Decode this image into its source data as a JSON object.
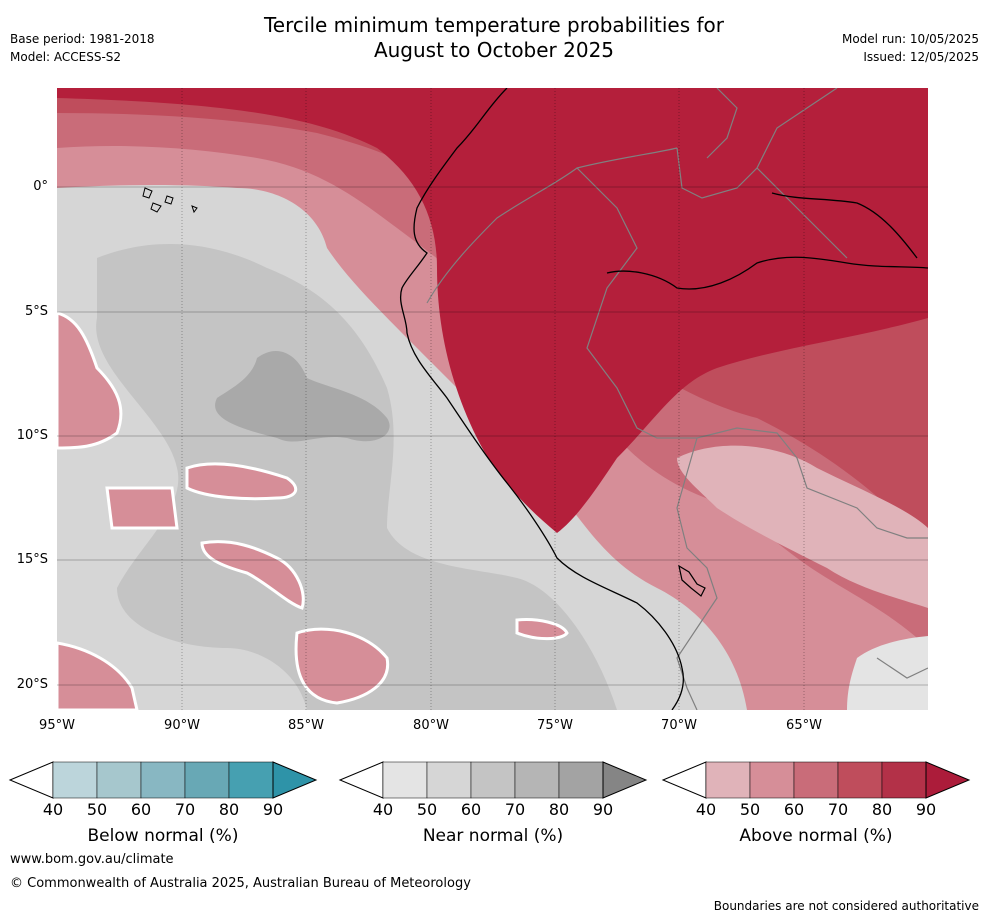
{
  "header": {
    "title_line1": "Tercile minimum temperature probabilities for",
    "title_line2": "August to October 2025",
    "base_period": "Base period: 1981-2018",
    "model": "Model: ACCESS-S2",
    "model_run": "Model run: 10/05/2025",
    "issued": "Issued: 12/05/2025"
  },
  "map": {
    "lat_labels": [
      "0°",
      "5°S",
      "10°S",
      "15°S",
      "20°S"
    ],
    "lon_labels": [
      "95°W",
      "90°W",
      "85°W",
      "80°W",
      "75°W",
      "70°W",
      "65°W"
    ],
    "colors": {
      "ocean_near": "#d6d6d6",
      "near_50": "#c4c4c4",
      "near_60": "#a9a9a9",
      "above_50": "#d68e98",
      "above_60": "#c96c79",
      "above_70": "#bf4d5c",
      "above_80": "#b41f3b",
      "light_above": "#e0b3b9",
      "border_country": "#808080",
      "coast": "#000000"
    }
  },
  "legends": [
    {
      "title": "Below normal (%)",
      "ticks": [
        "40",
        "50",
        "60",
        "70",
        "80",
        "90"
      ],
      "colors": [
        "#bcd5db",
        "#a6c7cd",
        "#88b7c2",
        "#68a8b5",
        "#46a0b1",
        "#2e93a8"
      ]
    },
    {
      "title": "Near normal (%)",
      "ticks": [
        "40",
        "50",
        "60",
        "70",
        "80",
        "90"
      ],
      "colors": [
        "#e4e4e4",
        "#d6d6d6",
        "#c4c4c4",
        "#b5b5b5",
        "#a3a3a3",
        "#858585"
      ]
    },
    {
      "title": "Above normal (%)",
      "ticks": [
        "40",
        "50",
        "60",
        "70",
        "80",
        "90"
      ],
      "colors": [
        "#e0b3b9",
        "#d68e98",
        "#c96c79",
        "#bf4d5c",
        "#b33148",
        "#ac1c3a"
      ]
    }
  ],
  "footer": {
    "url": "www.bom.gov.au/climate",
    "copyright": "© Commonwealth of Australia 2025, Australian Bureau of Meteorology",
    "note": "Boundaries are not considered authoritative"
  }
}
